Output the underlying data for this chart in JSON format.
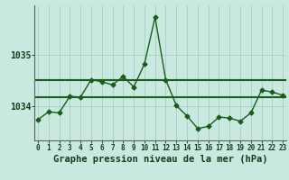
{
  "title": "Graphe pression niveau de la mer (hPa)",
  "x_values": [
    0,
    1,
    2,
    3,
    4,
    5,
    6,
    7,
    8,
    9,
    10,
    11,
    12,
    13,
    14,
    15,
    16,
    17,
    18,
    19,
    20,
    21,
    22,
    23
  ],
  "y_main": [
    1033.75,
    1033.9,
    1033.88,
    1034.2,
    1034.18,
    1034.52,
    1034.48,
    1034.42,
    1034.58,
    1034.38,
    1034.82,
    1035.72,
    1034.52,
    1034.02,
    1033.82,
    1033.58,
    1033.62,
    1033.8,
    1033.78,
    1033.72,
    1033.88,
    1034.32,
    1034.28,
    1034.22
  ],
  "y_avg1": 1034.18,
  "y_avg2": 1034.52,
  "yticks": [
    1034,
    1035
  ],
  "ylim_bottom": 1033.35,
  "ylim_top": 1035.95,
  "xlim": [
    -0.3,
    23.3
  ],
  "bg_color": "#c8e8e0",
  "line_color": "#1a5c1a",
  "grid_color": "#a0ccbc",
  "marker": "D",
  "marker_size": 2.5,
  "line_width": 1.0,
  "title_fontsize": 7.5,
  "tick_fontsize": 5.5,
  "ytick_fontsize": 7
}
